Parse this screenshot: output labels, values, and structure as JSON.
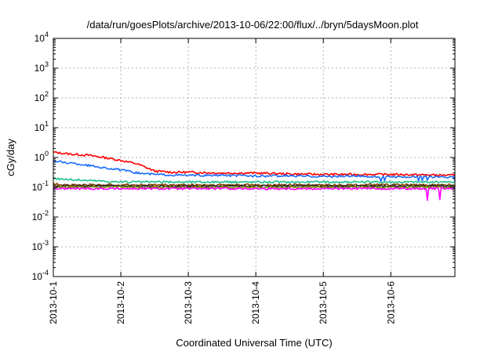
{
  "chart_data": {
    "type": "line",
    "title": "/data/run/goesPlots/archive/2013-10-06/22:00/flux/../bryn/5daysMoon.plot",
    "xlabel": "Coordinated Universal Time (UTC)",
    "ylabel": "cGy/day",
    "x_ticks": [
      "2013-10-1",
      "2013-10-2",
      "2013-10-3",
      "2013-10-4",
      "2013-10-5",
      "2013-10-6"
    ],
    "x_range_days": [
      0,
      5.95
    ],
    "y_scale": "log",
    "ylim": [
      0.0001,
      10000
    ],
    "y_ticks": [
      {
        "base": "10",
        "exp": "-4"
      },
      {
        "base": "10",
        "exp": "-3"
      },
      {
        "base": "10",
        "exp": "-2"
      },
      {
        "base": "10",
        "exp": "-1"
      },
      {
        "base": "10",
        "exp": "0"
      },
      {
        "base": "10",
        "exp": "1"
      },
      {
        "base": "10",
        "exp": "2"
      },
      {
        "base": "10",
        "exp": "3"
      },
      {
        "base": "10",
        "exp": "4"
      }
    ],
    "grid": true,
    "x": [
      0,
      0.25,
      0.5,
      0.75,
      1.0,
      1.25,
      1.5,
      1.75,
      2.0,
      2.5,
      3.0,
      3.5,
      4.0,
      4.5,
      5.0,
      5.5,
      5.95
    ],
    "series": [
      {
        "color": "#ff0000",
        "values": [
          1.5,
          1.3,
          1.2,
          1.0,
          0.8,
          0.6,
          0.35,
          0.32,
          0.32,
          0.3,
          0.3,
          0.28,
          0.27,
          0.27,
          0.27,
          0.26,
          0.25
        ]
      },
      {
        "color": "#1a6cff",
        "values": [
          0.75,
          0.65,
          0.55,
          0.45,
          0.38,
          0.3,
          0.27,
          0.26,
          0.25,
          0.25,
          0.24,
          0.24,
          0.23,
          0.24,
          0.22,
          0.23,
          0.22
        ]
      },
      {
        "color": "#1fbf8f",
        "values": [
          0.2,
          0.18,
          0.17,
          0.16,
          0.15,
          0.15,
          0.15,
          0.15,
          0.15,
          0.15,
          0.15,
          0.15,
          0.15,
          0.15,
          0.15,
          0.15,
          0.15
        ]
      },
      {
        "color": "#8b4500",
        "values": [
          0.13,
          0.12,
          0.12,
          0.12,
          0.12,
          0.12,
          0.12,
          0.12,
          0.12,
          0.12,
          0.12,
          0.12,
          0.12,
          0.12,
          0.12,
          0.12,
          0.12
        ]
      },
      {
        "color": "#222222",
        "values": [
          0.11,
          0.11,
          0.11,
          0.11,
          0.11,
          0.11,
          0.11,
          0.11,
          0.11,
          0.11,
          0.11,
          0.11,
          0.11,
          0.11,
          0.11,
          0.11,
          0.11
        ]
      },
      {
        "color": "#7a8a00",
        "values": [
          0.1,
          0.1,
          0.1,
          0.1,
          0.1,
          0.1,
          0.1,
          0.1,
          0.1,
          0.1,
          0.1,
          0.1,
          0.1,
          0.1,
          0.1,
          0.1,
          0.1
        ]
      },
      {
        "color": "#ff00ff",
        "values": [
          0.09,
          0.09,
          0.09,
          0.09,
          0.09,
          0.09,
          0.09,
          0.09,
          0.09,
          0.09,
          0.09,
          0.09,
          0.09,
          0.09,
          0.09,
          0.09,
          0.09
        ]
      }
    ]
  }
}
